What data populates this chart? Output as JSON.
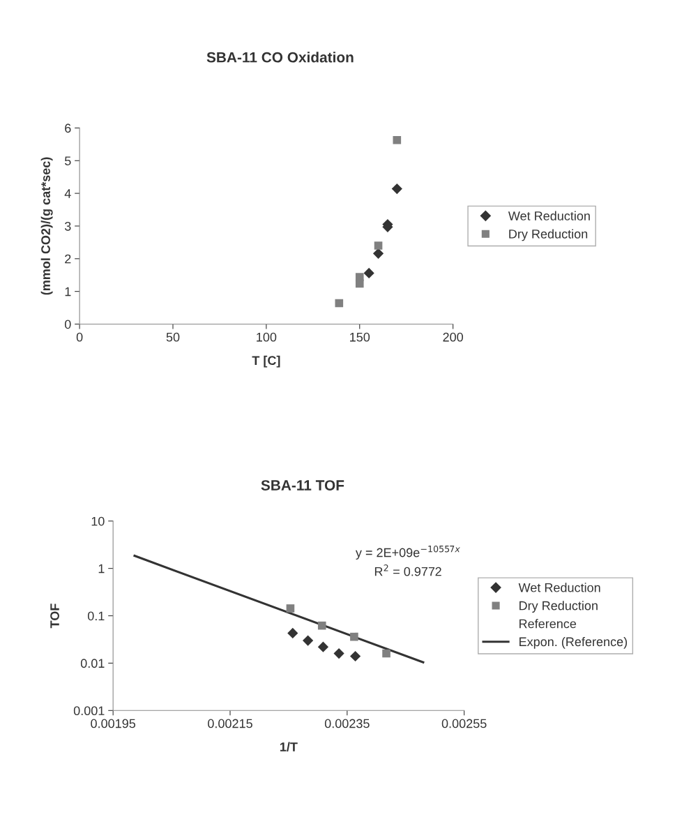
{
  "chart_data": [
    {
      "type": "scatter",
      "title": "SBA-11 CO Oxidation",
      "xlabel": "T [C]",
      "ylabel": "(mmol CO2)/(g cat*sec)",
      "xlim": [
        0,
        200
      ],
      "xticks": [
        0,
        50,
        100,
        150,
        200
      ],
      "ylim": [
        0,
        6
      ],
      "yticks": [
        0,
        1,
        2,
        3,
        4,
        5,
        6
      ],
      "grid": false,
      "legend": "right",
      "series": [
        {
          "name": "Wet Reduction",
          "color": "#333333",
          "marker": "diamond",
          "x": [
            155,
            160,
            165,
            165,
            170
          ],
          "values": [
            1.56,
            2.16,
            3.05,
            2.97,
            4.14
          ]
        },
        {
          "name": "Dry Reduction",
          "color": "#808080",
          "marker": "square",
          "x": [
            139,
            150,
            150,
            160,
            170
          ],
          "values": [
            0.64,
            1.44,
            1.24,
            2.4,
            5.63
          ]
        }
      ]
    },
    {
      "type": "scatter",
      "title": "SBA-11 TOF",
      "xlabel": "1/T",
      "ylabel": "TOF",
      "log": "y",
      "xlim": [
        0.00195,
        0.00255
      ],
      "xticks": [
        0.00195,
        0.00215,
        0.00235,
        0.00255
      ],
      "ylim": [
        0.001,
        10
      ],
      "yticks": [
        0.001,
        0.01,
        0.1,
        1,
        10
      ],
      "grid": false,
      "legend": "right",
      "annotations": [
        "y = 2E+09e$^{−10557x}$",
        "R$^{2}$ = 0.9772"
      ],
      "series": [
        {
          "name": "Wet Reduction",
          "color": "#333333",
          "marker": "diamond",
          "x": [
            0.002257,
            0.002283,
            0.002309,
            0.002336,
            0.002364
          ],
          "values": [
            0.043,
            0.03,
            0.022,
            0.016,
            0.014
          ]
        },
        {
          "name": "Dry Reduction",
          "color": "#808080",
          "marker": "square",
          "x": [
            0.002253,
            0.002307,
            0.002362,
            0.002417
          ],
          "values": [
            0.143,
            0.062,
            0.036,
            0.016
          ]
        },
        {
          "name": "Reference",
          "color": "#333333",
          "marker": "none"
        },
        {
          "name": "Expon. (Reference)",
          "type": "line",
          "color": "#333333",
          "marker": "none",
          "line_style": "solid",
          "x": [
            0.0019867,
            0.00248
          ],
          "values": [
            1.85,
            0.0104
          ]
        }
      ]
    }
  ]
}
